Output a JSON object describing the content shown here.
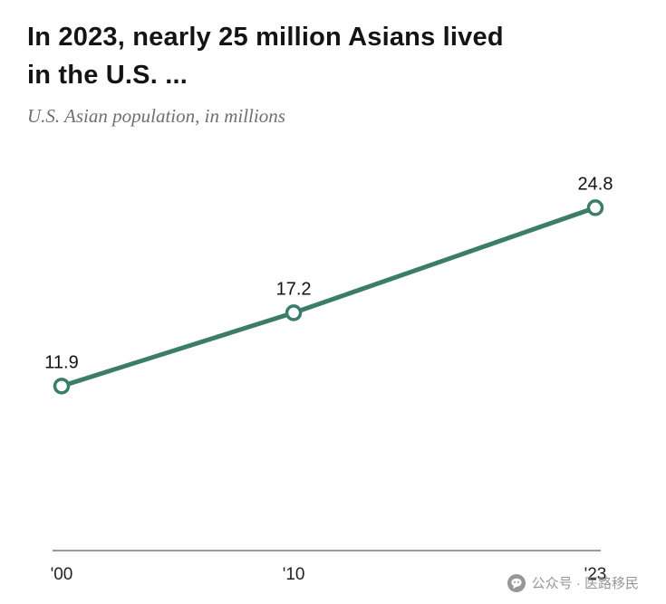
{
  "header": {
    "title_line1": "In 2023, nearly 25 million Asians lived",
    "title_line2": "in the U.S. ...",
    "subtitle": "U.S. Asian population, in millions"
  },
  "chart_data": {
    "type": "line",
    "title": "In 2023, nearly 25 million Asians lived in the U.S. ...",
    "subtitle": "U.S. Asian population, in millions",
    "x": [
      2000,
      2010,
      2023
    ],
    "values": [
      11.9,
      17.2,
      24.8
    ],
    "x_tick_labels": [
      "'00",
      "'10",
      "'23"
    ],
    "data_labels": [
      "11.9",
      "17.2",
      "24.8"
    ],
    "series_name": "U.S. Asian population, in millions",
    "xlim": [
      2000,
      2023
    ],
    "ylim": [
      0,
      30
    ],
    "grid": false,
    "legend": "none",
    "line_color": "#3b7d68",
    "marker": "open-circle",
    "axis_color": "#9b9b9b",
    "label_color": "#121212"
  },
  "watermark": {
    "text": "公众号 · 医路移民",
    "icon": "wechat-logo-icon",
    "color": "#8f8f8f"
  }
}
